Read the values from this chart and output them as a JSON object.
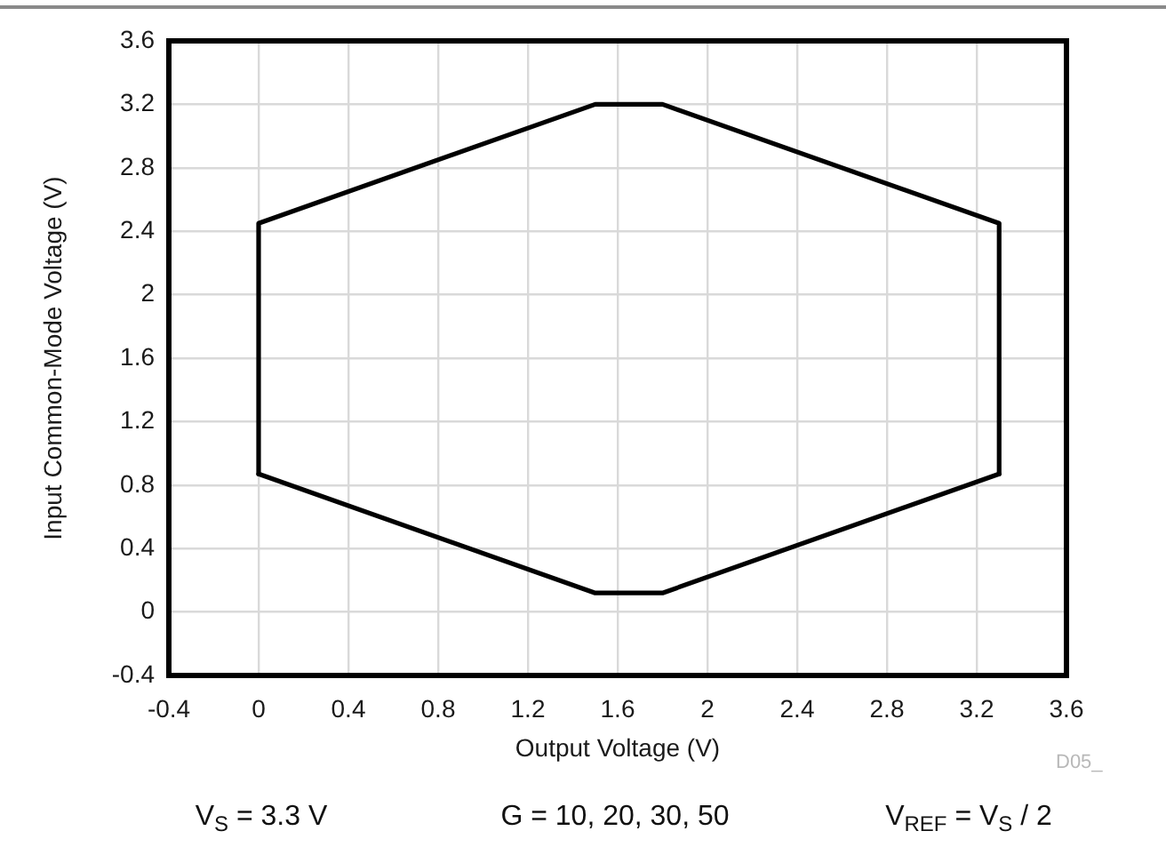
{
  "chart_data": {
    "type": "line",
    "xlabel": "Output Voltage (V)",
    "ylabel": "Input Common-Mode Voltage (V)",
    "annotations": [
      "D05_",
      "V$_{S}$ = 3.3 V",
      "G = 10, 20, 30, 50",
      "V$_{REF}$ = V$_{S}$ / 2"
    ],
    "series": [
      {
        "color": "#000000",
        "x": [
          0,
          0,
          1.5,
          1.8,
          3.3,
          3.3
        ],
        "values": [
          0.87,
          2.45,
          3.2,
          3.2,
          2.45,
          0.87
        ]
      },
      {
        "color": "#000000",
        "x": [
          0,
          1.5,
          1.8,
          3.3
        ],
        "values": [
          0.87,
          0.12,
          0.12,
          0.87
        ]
      }
    ],
    "xlim": [
      -0.4,
      3.6
    ],
    "xticks": [
      -0.4,
      0,
      0.4,
      0.8,
      1.2,
      1.6,
      2,
      2.4,
      2.8,
      3.2,
      3.6
    ],
    "ylim": [
      -0.4,
      3.6
    ],
    "yticks": [
      -0.4,
      0,
      0.4,
      0.8,
      1.2,
      1.6,
      2,
      2.4,
      2.8,
      3.2,
      3.6
    ],
    "grid": true
  }
}
